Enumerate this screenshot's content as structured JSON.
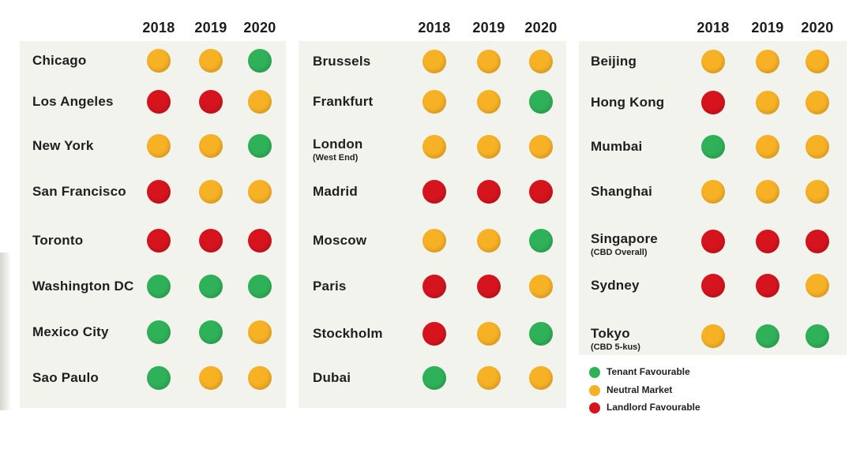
{
  "chart_data": {
    "type": "table",
    "years": [
      "2018",
      "2019",
      "2020"
    ],
    "statuses": {
      "tenant": {
        "label": "Tenant Favourable",
        "color": "#2fb159"
      },
      "neutral": {
        "label": "Neutral Market",
        "color": "#f7b125"
      },
      "landlord": {
        "label": "Landlord Favourable",
        "color": "#d5141e"
      }
    },
    "legend_order": [
      "tenant",
      "neutral",
      "landlord"
    ],
    "panels": [
      {
        "cities": [
          {
            "name": "Chicago",
            "sub": "",
            "values": [
              "neutral",
              "neutral",
              "tenant"
            ]
          },
          {
            "name": "Los Angeles",
            "sub": "",
            "values": [
              "landlord",
              "landlord",
              "neutral"
            ]
          },
          {
            "name": "New York",
            "sub": "",
            "values": [
              "neutral",
              "neutral",
              "tenant"
            ]
          },
          {
            "name": "San Francisco",
            "sub": "",
            "values": [
              "landlord",
              "neutral",
              "neutral"
            ]
          },
          {
            "name": "Toronto",
            "sub": "",
            "values": [
              "landlord",
              "landlord",
              "landlord"
            ]
          },
          {
            "name": "Washington DC",
            "sub": "",
            "values": [
              "tenant",
              "tenant",
              "tenant"
            ]
          },
          {
            "name": "Mexico City",
            "sub": "",
            "values": [
              "tenant",
              "tenant",
              "neutral"
            ]
          },
          {
            "name": "Sao Paulo",
            "sub": "",
            "values": [
              "tenant",
              "neutral",
              "neutral"
            ]
          }
        ]
      },
      {
        "cities": [
          {
            "name": "Brussels",
            "sub": "",
            "values": [
              "neutral",
              "neutral",
              "neutral"
            ]
          },
          {
            "name": "Frankfurt",
            "sub": "",
            "values": [
              "neutral",
              "neutral",
              "tenant"
            ]
          },
          {
            "name": "London",
            "sub": "(West End)",
            "values": [
              "neutral",
              "neutral",
              "neutral"
            ]
          },
          {
            "name": "Madrid",
            "sub": "",
            "values": [
              "landlord",
              "landlord",
              "landlord"
            ]
          },
          {
            "name": "Moscow",
            "sub": "",
            "values": [
              "neutral",
              "neutral",
              "tenant"
            ]
          },
          {
            "name": "Paris",
            "sub": "",
            "values": [
              "landlord",
              "landlord",
              "neutral"
            ]
          },
          {
            "name": "Stockholm",
            "sub": "",
            "values": [
              "landlord",
              "neutral",
              "tenant"
            ]
          },
          {
            "name": "Dubai",
            "sub": "",
            "values": [
              "tenant",
              "neutral",
              "neutral"
            ]
          }
        ]
      },
      {
        "cities": [
          {
            "name": "Beijing",
            "sub": "",
            "values": [
              "neutral",
              "neutral",
              "neutral"
            ]
          },
          {
            "name": "Hong Kong",
            "sub": "",
            "values": [
              "landlord",
              "neutral",
              "neutral"
            ]
          },
          {
            "name": "Mumbai",
            "sub": "",
            "values": [
              "tenant",
              "neutral",
              "neutral"
            ]
          },
          {
            "name": "Shanghai",
            "sub": "",
            "values": [
              "neutral",
              "neutral",
              "neutral"
            ]
          },
          {
            "name": "Singapore",
            "sub": "(CBD Overall)",
            "values": [
              "landlord",
              "landlord",
              "landlord"
            ]
          },
          {
            "name": "Sydney",
            "sub": "",
            "values": [
              "landlord",
              "landlord",
              "neutral"
            ]
          },
          {
            "name": "Tokyo",
            "sub": "(CBD 5-kus)",
            "values": [
              "neutral",
              "tenant",
              "tenant"
            ]
          }
        ]
      }
    ]
  }
}
